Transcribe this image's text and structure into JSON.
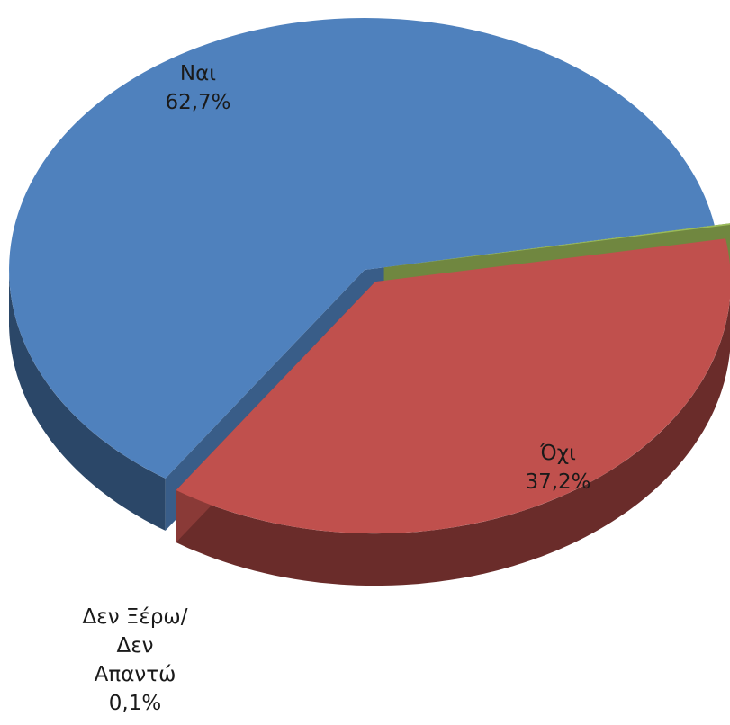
{
  "chart_data": {
    "type": "pie",
    "style": "3d-exploded",
    "title": "",
    "legend": "none",
    "slices": [
      {
        "label": "Ναι",
        "value": 62.7,
        "value_label": "62,7%",
        "color": "#4F81BD"
      },
      {
        "label": "Όχι",
        "value": 37.2,
        "value_label": "37,2%",
        "color": "#C0504D"
      },
      {
        "label_lines": [
          "Δεν Ξέρω/",
          "Δεν",
          "Απαντώ"
        ],
        "value": 0.1,
        "value_label": "0,1%",
        "color": "#9BBB59"
      }
    ]
  }
}
